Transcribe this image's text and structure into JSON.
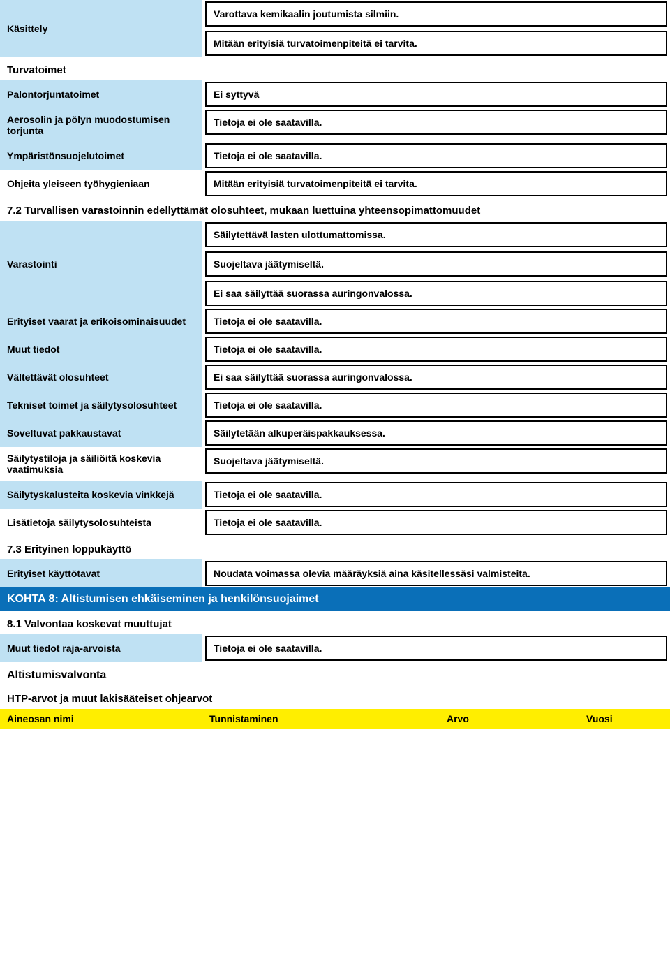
{
  "colors": {
    "label_bg": "#bfe1f3",
    "kohta_bg": "#0a6fb8",
    "kohta_text": "#ffffff",
    "yellow_bg": "#ffee00",
    "box_border": "#000000",
    "page_bg": "#ffffff",
    "text": "#000000"
  },
  "rows": [
    {
      "label": "Käsittely",
      "label_bg": "blue",
      "values": [
        "Varottava kemikaalin joutumista silmiin.",
        "Mitään erityisiä turvatoimenpiteitä ei tarvita."
      ],
      "boxed": true
    },
    {
      "section": "Turvatoimet"
    },
    {
      "label": "Palontorjuntatoimet",
      "label_bg": "blue",
      "values": [
        "Ei syttyvä"
      ],
      "boxed": true
    },
    {
      "label": "Aerosolin ja pölyn muodostumisen torjunta",
      "label_bg": "blue",
      "values": [
        "Tietoja ei ole saatavilla."
      ],
      "boxed": true
    },
    {
      "label": "Ympäristönsuojelutoimet",
      "label_bg": "blue",
      "values": [
        "Tietoja ei ole saatavilla."
      ],
      "boxed": true
    },
    {
      "label": "Ohjeita yleiseen työhygieniaan",
      "label_bg": "white",
      "values": [
        "Mitään erityisiä turvatoimenpiteitä ei tarvita."
      ],
      "boxed": true
    },
    {
      "section": "7.2 Turvallisen varastoinnin edellyttämät olosuhteet, mukaan luettuina yhteensopimattomuudet"
    },
    {
      "label": "Varastointi",
      "label_bg": "blue",
      "values": [
        "Säilytettävä lasten ulottumattomissa.",
        "Suojeltava jäätymiseltä.",
        "Ei saa säilyttää suorassa auringonvalossa."
      ],
      "boxed": true
    },
    {
      "label": "Erityiset vaarat ja erikoisominaisuudet",
      "label_bg": "blue",
      "values": [
        "Tietoja ei ole saatavilla."
      ],
      "boxed": true
    },
    {
      "label": "Muut tiedot",
      "label_bg": "blue",
      "values": [
        "Tietoja ei ole saatavilla."
      ],
      "boxed": true
    },
    {
      "label": "Vältettävät olosuhteet",
      "label_bg": "blue",
      "values": [
        "Ei saa säilyttää suorassa auringonvalossa."
      ],
      "boxed": true
    },
    {
      "label": "Tekniset toimet ja säilytysolosuhteet",
      "label_bg": "blue",
      "values": [
        "Tietoja ei ole saatavilla."
      ],
      "boxed": true
    },
    {
      "label": "Soveltuvat pakkaustavat",
      "label_bg": "blue",
      "values": [
        "Säilytetään alkuperäispakkauksessa."
      ],
      "boxed": true
    },
    {
      "label": "Säilytystiloja ja säiliöitä koskevia vaatimuksia",
      "label_bg": "white",
      "values": [
        "Suojeltava jäätymiseltä."
      ],
      "boxed": true
    },
    {
      "label": "Säilytyskalusteita koskevia vinkkejä",
      "label_bg": "blue",
      "values": [
        "Tietoja ei ole saatavilla."
      ],
      "boxed": true
    },
    {
      "label": "Lisätietoja säilytysolosuhteista",
      "label_bg": "white",
      "values": [
        "Tietoja ei ole saatavilla."
      ],
      "boxed": true
    },
    {
      "section": "7.3 Erityinen loppukäyttö"
    },
    {
      "label": "Erityiset käyttötavat",
      "label_bg": "blue",
      "values": [
        "Noudata voimassa olevia määräyksiä aina käsitellessäsi valmisteita."
      ],
      "boxed": true
    }
  ],
  "kohta8": "KOHTA 8: Altistumisen ehkäiseminen ja henkilönsuojaimet",
  "s81": "8.1 Valvontaa koskevat muuttujat",
  "row81": {
    "label": "Muut tiedot raja-arvoista",
    "value": "Tietoja ei ole saatavilla."
  },
  "altistumis": "Altistumisvalvonta",
  "htp": "HTP-arvot ja muut lakisääteiset ohjearvot",
  "yellow": {
    "c1": "Aineosan nimi",
    "c2": "Tunnistaminen",
    "c3": "Arvo",
    "c4": "Vuosi"
  }
}
